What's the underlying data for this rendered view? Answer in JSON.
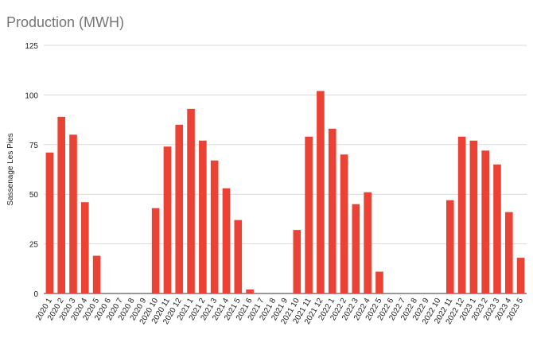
{
  "chart_data": {
    "type": "bar",
    "title": "Production (MWH)",
    "xlabel": "",
    "ylabel": "Sassenage Les Pies",
    "ylim": [
      0,
      125
    ],
    "yticks": [
      0,
      25,
      50,
      75,
      100,
      125
    ],
    "grid": true,
    "legend": "none",
    "bar_color": "#ea4335",
    "categories": [
      "2020 1",
      "2020 2",
      "2020 3",
      "2020 4",
      "2020 5",
      "2020 6",
      "2020 7",
      "2020 8",
      "2020 9",
      "2020 10",
      "2020 11",
      "2020 12",
      "2021 1",
      "2021 2",
      "2021 3",
      "2021 4",
      "2021 5",
      "2021 6",
      "2021 7",
      "2021 8",
      "2021 9",
      "2021 10",
      "2021 11",
      "2021 12",
      "2022 1",
      "2022 2",
      "2022 3",
      "2022 4",
      "2022 5",
      "2022 6",
      "2022 7",
      "2022 8",
      "2022 9",
      "2022 10",
      "2022 11",
      "2022 12",
      "2023 1",
      "2023 2",
      "2023 3",
      "2023 4",
      "2023 5"
    ],
    "values": [
      71,
      89,
      80,
      46,
      19,
      0,
      0,
      0,
      0,
      43,
      74,
      85,
      93,
      77,
      67,
      53,
      37,
      2,
      0,
      0,
      0,
      32,
      79,
      102,
      83,
      70,
      45,
      51,
      11,
      0,
      0,
      0,
      0,
      0,
      47,
      79,
      77,
      72,
      65,
      41,
      18
    ]
  }
}
